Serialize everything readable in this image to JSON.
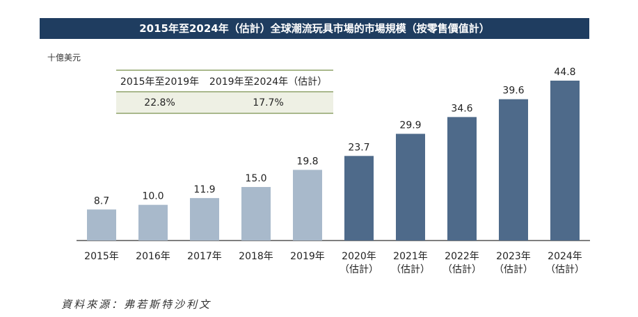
{
  "title": "2015年至2024年（估計）全球潮流玩具市場的市場規模（按零售價值計）",
  "unit": "十億美元",
  "cagr_table": {
    "headers": [
      "2015年至2019年",
      "2019年至2024年（估計）"
    ],
    "values": [
      "22.8%",
      "17.7%"
    ]
  },
  "source": "資料來源：弗若斯特沙利文",
  "chart_data": {
    "type": "bar",
    "title": "2015年至2024年（估計）全球潮流玩具市場的市場規模（按零售價值計）",
    "ylabel": "十億美元",
    "categories": [
      "2015年",
      "2016年",
      "2017年",
      "2018年",
      "2019年",
      "2020年",
      "2021年",
      "2022年",
      "2023年",
      "2024年"
    ],
    "category_sublabels": [
      "",
      "",
      "",
      "",
      "",
      "（估計）",
      "（估計）",
      "（估計）",
      "（估計）",
      "（估計）"
    ],
    "values": [
      8.7,
      10.0,
      11.9,
      15.0,
      19.8,
      23.7,
      29.9,
      34.6,
      39.6,
      44.8
    ],
    "value_labels": [
      "8.7",
      "10.0",
      "11.9",
      "15.0",
      "19.8",
      "23.7",
      "29.9",
      "34.6",
      "39.6",
      "44.8"
    ],
    "ylim": [
      0,
      44.8
    ],
    "grid": false,
    "colors": {
      "historical": "#a8b9cb",
      "estimated": "#4e6a8a"
    }
  }
}
